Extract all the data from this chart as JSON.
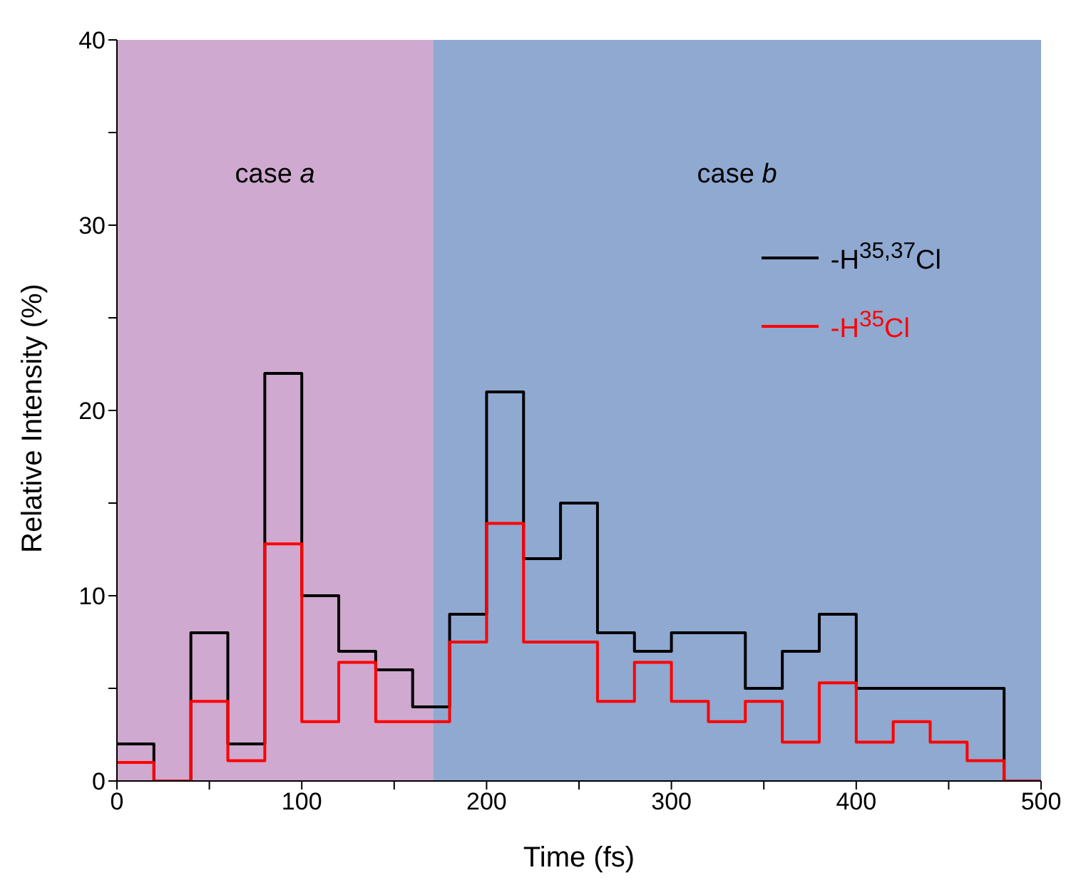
{
  "chart_data": {
    "type": "histogram",
    "xlabel": "Time (fs)",
    "ylabel": "Relative Intensity (%)",
    "bins": [
      0,
      20,
      40,
      60,
      80,
      100,
      120,
      140,
      160,
      180,
      200,
      220,
      240,
      260,
      280,
      300,
      320,
      340,
      360,
      380,
      400,
      420,
      440,
      460,
      480,
      500
    ],
    "series": [
      {
        "name": "-H$^{35,37}$Cl",
        "color": "#000000",
        "values": [
          2,
          0,
          8,
          2,
          22,
          10,
          7,
          6,
          4,
          9,
          21,
          12,
          15,
          8,
          7,
          8,
          8,
          5,
          7,
          9,
          5,
          5,
          5,
          5,
          0
        ]
      },
      {
        "name": "-H$^{35}$Cl",
        "color": "#ff0000",
        "values": [
          1,
          0,
          4.3,
          1.1,
          12.8,
          3.2,
          6.4,
          3.2,
          3.2,
          7.5,
          13.9,
          7.5,
          7.5,
          4.3,
          6.4,
          4.3,
          3.2,
          4.3,
          2.1,
          5.3,
          2.1,
          3.2,
          2.1,
          1.1,
          0
        ]
      }
    ],
    "bands": [
      {
        "axis": "x",
        "from": 0,
        "to": 171,
        "label": "case a",
        "color": "#cfa9cf"
      },
      {
        "axis": "x",
        "from": 171,
        "to": 500,
        "label": "case b",
        "color": "#8fa9d1"
      }
    ],
    "xlim": [
      0,
      500
    ],
    "xticks": [
      0,
      {
        "value": 50,
        "label": null
      },
      100,
      {
        "value": 150,
        "label": null
      },
      200,
      {
        "value": 250,
        "label": null
      },
      300,
      {
        "value": 350,
        "label": null
      },
      400,
      {
        "value": 450,
        "label": null
      },
      500
    ],
    "ylim": [
      0,
      40
    ],
    "yticks": [
      0,
      {
        "value": 5,
        "label": null
      },
      10,
      {
        "value": 15,
        "label": null
      },
      20,
      {
        "value": 25,
        "label": null
      },
      30,
      {
        "value": 35,
        "label": null
      },
      40
    ],
    "legend": "top right",
    "line_style": "solid"
  }
}
